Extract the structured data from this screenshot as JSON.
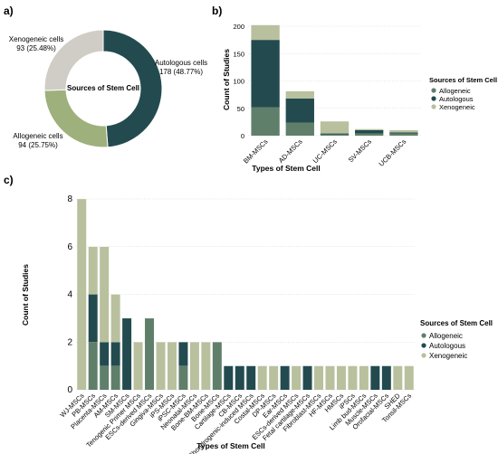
{
  "colors": {
    "allogeneic": "#5f7f6a",
    "autologous": "#234b4f",
    "xenogeneic": "#b8c09e",
    "donut_allogeneic": "#9eb07c",
    "donut_autologous": "#234b4f",
    "donut_xenogeneic": "#cfcdc5",
    "grid": "#d9d9d9"
  },
  "panels": {
    "a": "a)",
    "b": "b)",
    "c": "c)"
  },
  "chart_data": [
    {
      "type": "pie",
      "panel": "a",
      "center_label": "Sources of Stem Cell",
      "slices": [
        {
          "label": "Autologous cells",
          "value": 178,
          "detail": "178 (48.77%)",
          "percent": 48.77
        },
        {
          "label": "Allogeneic cells",
          "value": 94,
          "detail": "94 (25.75%)",
          "percent": 25.75
        },
        {
          "label": "Xenogeneic cells",
          "value": 93,
          "detail": "93 (25.48%)",
          "percent": 25.48
        }
      ]
    },
    {
      "type": "bar",
      "panel": "b",
      "stacked": true,
      "categories": [
        "BM-MSCs",
        "AD-MSCs",
        "UC-MSCs",
        "SV-MSCs",
        "UCB-MSCs"
      ],
      "series": [
        {
          "name": "Allogeneic",
          "values": [
            52,
            24,
            2,
            4,
            4
          ]
        },
        {
          "name": "Autologous",
          "values": [
            123,
            44,
            2,
            6,
            2
          ]
        },
        {
          "name": "Xenogeneic",
          "values": [
            27,
            13,
            22,
            2,
            4
          ]
        }
      ],
      "xlabel": "Types of Stem Cell",
      "ylabel": "Count of Studies",
      "ylim": [
        0,
        200
      ],
      "yticks": [
        0,
        50,
        100,
        150,
        200
      ],
      "grid": true,
      "legend_title": "Sources of Stem Cell",
      "legend_position": "right"
    },
    {
      "type": "bar",
      "panel": "c",
      "stacked": true,
      "categories": [
        "WJ-MSCs",
        "PB-MSCs",
        "Placenta-MSCs",
        "AM-MSCs",
        "SM-MSCs",
        "Tenogenic Primer MSCs",
        "ESCs-derived MSCs",
        "Gingiva-MSCs",
        "iPS-MSCs",
        "iPSC-MSCs",
        "Neonatal-MSCs",
        "Bone-BM-MSCs",
        "Bone-MSCs",
        "Cartilage-MSCs",
        "CB-MSCs",
        "Chondrogenic-induced MSCs",
        "Costal-MSCs",
        "DP-MSCs",
        "Ear-MSCs",
        "ESCs-derived MSCs",
        "Fetal cartilage-MSCs",
        "Fibroblast-MSCs",
        "HF-MSCs",
        "HMSCs",
        "iPSCs",
        "Limb bud-MSCs",
        "Muscle-MSCs",
        "Orofacial-MSCs",
        "SHED",
        "Tonsil-MSCs"
      ],
      "series": [
        {
          "name": "Allogeneic",
          "values": [
            0,
            2,
            1,
            1,
            0,
            0,
            3,
            0,
            0,
            1,
            0,
            0,
            2,
            0,
            0,
            0,
            0,
            0,
            0,
            0,
            0,
            0,
            0,
            0,
            0,
            0,
            0,
            0,
            0,
            0
          ]
        },
        {
          "name": "Autologous",
          "values": [
            0,
            2,
            1,
            1,
            3,
            0,
            0,
            0,
            0,
            1,
            0,
            0,
            0,
            1,
            1,
            1,
            0,
            0,
            1,
            0,
            1,
            0,
            0,
            0,
            0,
            0,
            1,
            1,
            0,
            0
          ]
        },
        {
          "name": "Xenogeneic",
          "values": [
            8,
            2,
            4,
            2,
            0,
            2,
            0,
            2,
            2,
            0,
            2,
            2,
            0,
            0,
            0,
            0,
            1,
            1,
            0,
            1,
            0,
            1,
            1,
            1,
            1,
            1,
            0,
            0,
            1,
            1
          ]
        }
      ],
      "xlabel": "Types of Stem Cell",
      "ylabel": "Count of Studies",
      "ylim": [
        0,
        8
      ],
      "yticks": [
        0,
        2,
        4,
        6,
        8
      ],
      "grid": true,
      "legend_title": "Sources of Stem Cell",
      "legend_position": "right"
    }
  ]
}
